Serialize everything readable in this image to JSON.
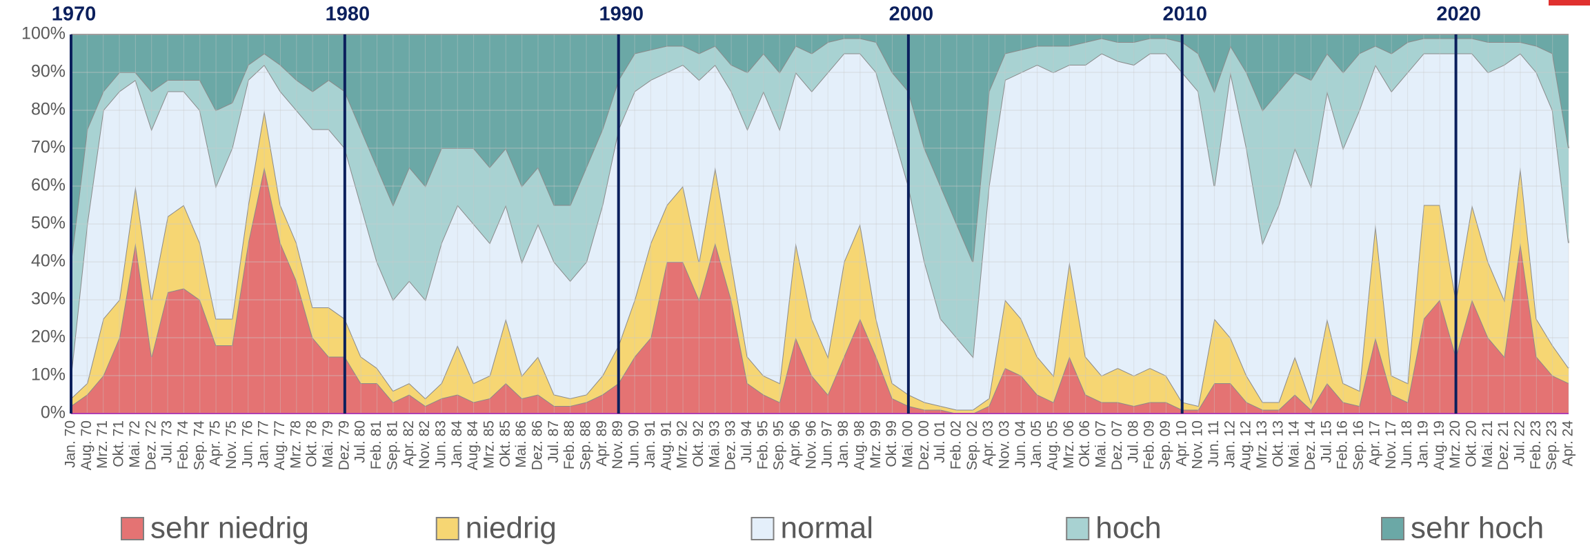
{
  "chart_data": {
    "type": "area",
    "stacked": true,
    "categories": [
      "Jan. 70",
      "Aug. 70",
      "Mrz. 71",
      "Okt. 71",
      "Mai. 72",
      "Dez. 72",
      "Jul. 73",
      "Feb. 74",
      "Sep. 74",
      "Apr. 75",
      "Nov. 75",
      "Jun. 76",
      "Jan. 77",
      "Aug. 77",
      "Mrz. 78",
      "Okt. 78",
      "Mai. 79",
      "Dez. 79",
      "Jul. 80",
      "Feb. 81",
      "Sep. 81",
      "Apr. 82",
      "Nov. 82",
      "Jun. 83",
      "Jan. 84",
      "Aug. 84",
      "Mrz. 85",
      "Okt. 85",
      "Mai. 86",
      "Dez. 86",
      "Jul. 87",
      "Feb. 88",
      "Sep. 88",
      "Apr. 89",
      "Nov. 89",
      "Jun. 90",
      "Jan. 91",
      "Aug. 91",
      "Mrz. 92",
      "Okt. 92",
      "Mai. 93",
      "Dez. 93",
      "Jul. 94",
      "Feb. 95",
      "Sep. 95",
      "Apr. 96",
      "Nov. 96",
      "Jun. 97",
      "Jan. 98",
      "Aug. 98",
      "Mrz. 99",
      "Okt. 99",
      "Mai. 00",
      "Dez. 00",
      "Jul. 01",
      "Feb. 02",
      "Sep. 02",
      "Apr. 03",
      "Nov. 03",
      "Jun. 04",
      "Jan. 05",
      "Aug. 05",
      "Mrz. 06",
      "Okt. 06",
      "Mai. 07",
      "Dez. 07",
      "Jul. 08",
      "Feb. 09",
      "Sep. 09",
      "Apr. 10",
      "Nov. 10",
      "Jun. 11",
      "Jan. 12",
      "Aug. 12",
      "Mrz. 13",
      "Okt. 13",
      "Mai. 14",
      "Dez. 14",
      "Jul. 15",
      "Feb. 16",
      "Sep. 16",
      "Apr. 17",
      "Nov. 17",
      "Jun. 18",
      "Jan. 19",
      "Aug. 19",
      "Mrz. 20",
      "Okt. 20",
      "Mai. 21",
      "Dez. 21",
      "Jul. 22",
      "Feb. 23",
      "Sep. 23",
      "Apr. 24"
    ],
    "series": [
      {
        "name": "sehr niedrig",
        "color": "#e47373",
        "values": [
          2,
          5,
          10,
          20,
          45,
          15,
          32,
          33,
          30,
          18,
          18,
          45,
          65,
          45,
          35,
          20,
          15,
          15,
          8,
          8,
          3,
          5,
          2,
          4,
          5,
          3,
          4,
          8,
          4,
          5,
          2,
          2,
          3,
          5,
          8,
          15,
          20,
          40,
          40,
          30,
          45,
          30,
          8,
          5,
          3,
          20,
          10,
          5,
          15,
          25,
          15,
          4,
          2,
          1,
          1,
          0,
          0,
          2,
          12,
          10,
          5,
          3,
          15,
          5,
          3,
          3,
          2,
          3,
          3,
          1,
          1,
          8,
          8,
          3,
          1,
          1,
          5,
          1,
          8,
          3,
          2,
          20,
          5,
          3,
          25,
          30,
          15,
          30,
          20,
          15,
          45,
          15,
          10,
          8
        ]
      },
      {
        "name": "niedrig",
        "color": "#f6d673",
        "values": [
          2,
          3,
          15,
          10,
          15,
          15,
          20,
          22,
          15,
          7,
          7,
          10,
          15,
          10,
          10,
          8,
          13,
          10,
          7,
          4,
          3,
          3,
          2,
          4,
          13,
          5,
          6,
          17,
          6,
          10,
          3,
          2,
          2,
          5,
          10,
          15,
          25,
          15,
          20,
          10,
          20,
          10,
          7,
          5,
          5,
          25,
          15,
          10,
          25,
          25,
          10,
          4,
          3,
          2,
          1,
          1,
          1,
          2,
          18,
          15,
          10,
          7,
          25,
          10,
          7,
          9,
          8,
          9,
          7,
          2,
          1,
          17,
          12,
          7,
          2,
          2,
          10,
          2,
          17,
          5,
          4,
          30,
          5,
          5,
          30,
          25,
          15,
          25,
          20,
          15,
          20,
          10,
          8,
          4
        ]
      },
      {
        "name": "normal",
        "color": "#e4effa",
        "values": [
          6,
          42,
          55,
          55,
          28,
          45,
          33,
          30,
          35,
          35,
          45,
          33,
          12,
          30,
          35,
          47,
          47,
          45,
          40,
          28,
          24,
          27,
          26,
          37,
          37,
          42,
          35,
          30,
          30,
          35,
          35,
          31,
          35,
          45,
          57,
          55,
          43,
          35,
          32,
          48,
          27,
          45,
          60,
          75,
          67,
          45,
          60,
          75,
          55,
          45,
          65,
          67,
          55,
          37,
          23,
          19,
          14,
          56,
          58,
          65,
          77,
          80,
          52,
          77,
          85,
          81,
          82,
          83,
          85,
          87,
          83,
          35,
          70,
          60,
          42,
          52,
          55,
          57,
          60,
          62,
          74,
          42,
          75,
          82,
          40,
          40,
          65,
          40,
          50,
          62,
          30,
          65,
          62,
          33
        ]
      },
      {
        "name": "hoch",
        "color": "#a8d2d2",
        "values": [
          30,
          25,
          5,
          5,
          2,
          10,
          3,
          3,
          8,
          20,
          12,
          4,
          3,
          7,
          8,
          10,
          13,
          15,
          20,
          25,
          25,
          30,
          30,
          25,
          15,
          20,
          20,
          15,
          20,
          15,
          15,
          20,
          25,
          20,
          13,
          10,
          8,
          7,
          5,
          7,
          5,
          7,
          15,
          10,
          15,
          7,
          10,
          8,
          4,
          4,
          8,
          15,
          25,
          30,
          35,
          30,
          25,
          25,
          7,
          6,
          5,
          7,
          5,
          6,
          4,
          5,
          6,
          4,
          4,
          8,
          10,
          25,
          7,
          20,
          35,
          30,
          20,
          28,
          10,
          20,
          15,
          5,
          10,
          8,
          4,
          4,
          4,
          4,
          8,
          6,
          3,
          7,
          15,
          25
        ]
      },
      {
        "name": "sehr hoch",
        "color": "#6ba8a6",
        "values": [
          60,
          25,
          15,
          10,
          10,
          15,
          12,
          12,
          12,
          20,
          18,
          8,
          5,
          8,
          12,
          15,
          12,
          15,
          25,
          35,
          45,
          35,
          40,
          30,
          30,
          30,
          35,
          30,
          40,
          35,
          45,
          45,
          35,
          25,
          12,
          5,
          4,
          3,
          3,
          5,
          3,
          8,
          10,
          5,
          10,
          3,
          5,
          2,
          1,
          1,
          2,
          10,
          15,
          30,
          40,
          50,
          60,
          15,
          5,
          4,
          3,
          3,
          3,
          2,
          1,
          2,
          2,
          1,
          1,
          2,
          5,
          15,
          3,
          10,
          20,
          15,
          10,
          12,
          5,
          10,
          5,
          3,
          5,
          2,
          1,
          1,
          1,
          1,
          2,
          2,
          2,
          3,
          5,
          30
        ]
      }
    ],
    "ylim": [
      0,
      100
    ],
    "yticks": [
      {
        "value": 0,
        "label": "0%"
      },
      {
        "value": 10,
        "label": "10%"
      },
      {
        "value": 20,
        "label": "20%"
      },
      {
        "value": 30,
        "label": "30%"
      },
      {
        "value": 40,
        "label": "40%"
      },
      {
        "value": 50,
        "label": "50%"
      },
      {
        "value": 60,
        "label": "60%"
      },
      {
        "value": 70,
        "label": "70%"
      },
      {
        "value": 80,
        "label": "80%"
      },
      {
        "value": 90,
        "label": "90%"
      },
      {
        "value": 100,
        "label": "100%"
      }
    ],
    "grid": true,
    "decade_markers": [
      {
        "label": "1970",
        "category": "Jan. 70"
      },
      {
        "label": "1980",
        "category": "Dez. 79"
      },
      {
        "label": "1990",
        "category": "Nov. 89"
      },
      {
        "label": "2000",
        "category": "Mai. 00"
      },
      {
        "label": "2010",
        "category": "Apr. 10"
      },
      {
        "label": "2020",
        "category": "Mrz. 20"
      }
    ],
    "legend_position": "bottom"
  }
}
